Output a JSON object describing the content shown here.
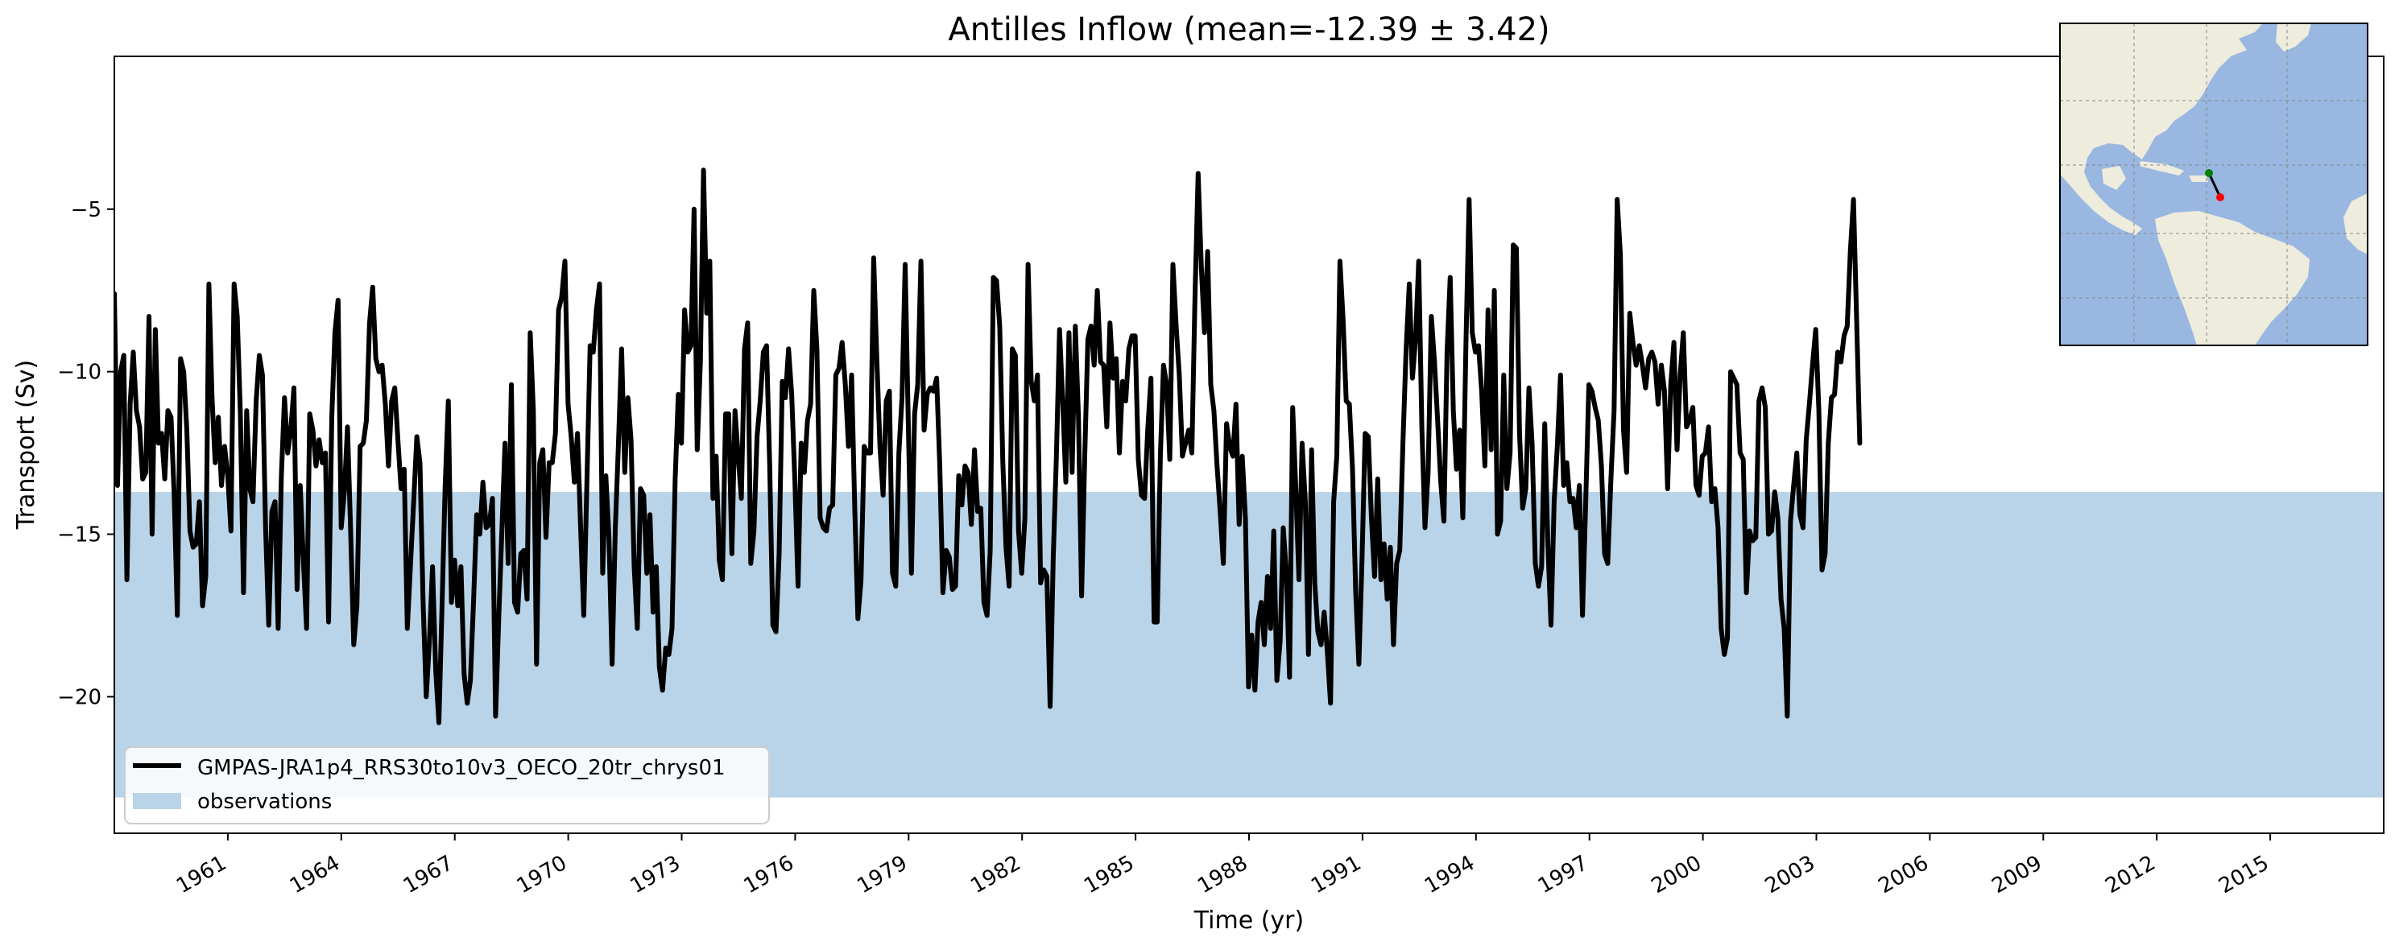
{
  "chart_data": {
    "type": "line",
    "title": "Antilles Inflow (mean=-12.39 ± 3.42)",
    "xlabel": "Time (yr)",
    "ylabel": "Transport (Sv)",
    "xlim": [
      1958,
      2018
    ],
    "ylim": [
      -24.2,
      -0.3
    ],
    "x_ticks": [
      1961,
      1964,
      1967,
      1970,
      1973,
      1976,
      1979,
      1982,
      1985,
      1988,
      1991,
      1994,
      1997,
      2000,
      2003,
      2006,
      2009,
      2012,
      2015
    ],
    "y_ticks": [
      -20,
      -15,
      -10,
      -5
    ],
    "grid": false,
    "legend_position": "lower-left",
    "observations_band": {
      "name": "observations",
      "range": [
        -23.1,
        -13.7
      ],
      "color": "#b9d4e8"
    },
    "series": [
      {
        "name": "GMPAS-JRA1p4_RRS30to10v3_OECO_20tr_chrys01",
        "color": "#000000",
        "x_start": 1958.0,
        "x_step": 0.0833,
        "values": [
          -7.6,
          -13.5,
          -10.0,
          -9.5,
          -16.4,
          -11.0,
          -9.4,
          -11.2,
          -11.7,
          -13.3,
          -13.1,
          -8.3,
          -15.0,
          -8.7,
          -12.2,
          -11.9,
          -13.3,
          -11.2,
          -11.4,
          -13.8,
          -17.5,
          -9.6,
          -10.0,
          -11.8,
          -14.9,
          -15.4,
          -15.3,
          -14.0,
          -17.2,
          -16.3,
          -7.3,
          -10.8,
          -12.8,
          -11.4,
          -13.5,
          -12.3,
          -13.2,
          -14.9,
          -7.3,
          -8.3,
          -11.3,
          -16.8,
          -11.2,
          -13.6,
          -14.0,
          -10.9,
          -9.5,
          -10.1,
          -14.8,
          -17.8,
          -14.3,
          -14.0,
          -17.9,
          -13.2,
          -10.8,
          -12.5,
          -11.8,
          -10.5,
          -16.7,
          -13.5,
          -15.8,
          -17.9,
          -11.3,
          -11.8,
          -12.9,
          -12.1,
          -12.8,
          -12.5,
          -17.7,
          -11.4,
          -8.8,
          -7.8,
          -14.8,
          -13.7,
          -11.7,
          -14.9,
          -18.4,
          -17.2,
          -12.3,
          -12.2,
          -11.5,
          -8.5,
          -7.4,
          -9.6,
          -10.0,
          -9.8,
          -11.0,
          -12.9,
          -10.9,
          -10.5,
          -12.1,
          -13.6,
          -13.0,
          -17.9,
          -15.9,
          -14.0,
          -12.0,
          -12.8,
          -17.1,
          -20.0,
          -18.3,
          -16.0,
          -19.2,
          -20.8,
          -17.2,
          -13.5,
          -10.9,
          -17.1,
          -15.8,
          -17.2,
          -16.0,
          -19.3,
          -20.2,
          -19.5,
          -17.1,
          -14.4,
          -15.0,
          -13.4,
          -14.8,
          -14.7,
          -13.9,
          -20.6,
          -17.6,
          -14.9,
          -12.2,
          -15.9,
          -10.4,
          -17.1,
          -17.4,
          -15.6,
          -15.5,
          -17.0,
          -8.8,
          -11.2,
          -19.0,
          -12.8,
          -12.4,
          -15.1,
          -12.8,
          -12.8,
          -11.9,
          -8.1,
          -7.7,
          -6.6,
          -11.0,
          -12.0,
          -13.4,
          -11.9,
          -14.8,
          -17.5,
          -13.4,
          -9.2,
          -9.4,
          -8.1,
          -7.3,
          -16.2,
          -13.2,
          -15.1,
          -19.0,
          -14.8,
          -12.2,
          -9.3,
          -13.1,
          -10.8,
          -12.1,
          -16.0,
          -17.9,
          -13.6,
          -13.8,
          -16.2,
          -14.4,
          -17.4,
          -16.0,
          -19.1,
          -19.8,
          -18.5,
          -18.7,
          -17.9,
          -13.3,
          -10.7,
          -12.2,
          -8.1,
          -9.4,
          -9.2,
          -5.0,
          -12.4,
          -9.7,
          -3.8,
          -8.2,
          -6.6,
          -13.9,
          -12.6,
          -15.8,
          -16.4,
          -11.3,
          -11.3,
          -15.6,
          -11.2,
          -12.6,
          -13.9,
          -9.3,
          -8.5,
          -15.9,
          -14.9,
          -12.0,
          -10.9,
          -9.4,
          -9.2,
          -12.9,
          -17.8,
          -18.0,
          -15.6,
          -10.3,
          -10.8,
          -9.3,
          -10.7,
          -13.4,
          -16.6,
          -12.2,
          -13.1,
          -11.5,
          -11.0,
          -7.5,
          -9.3,
          -14.5,
          -14.8,
          -14.9,
          -14.2,
          -14.1,
          -10.1,
          -9.9,
          -9.1,
          -10.4,
          -12.3,
          -10.1,
          -14.2,
          -17.6,
          -16.4,
          -12.3,
          -12.5,
          -12.5,
          -6.5,
          -9.6,
          -12.3,
          -13.8,
          -10.9,
          -10.6,
          -16.2,
          -16.6,
          -12.5,
          -10.8,
          -6.7,
          -11.6,
          -16.2,
          -11.3,
          -10.4,
          -6.6,
          -11.8,
          -10.7,
          -10.5,
          -10.6,
          -10.2,
          -12.9,
          -16.8,
          -15.5,
          -15.7,
          -16.7,
          -16.6,
          -13.2,
          -14.1,
          -12.9,
          -13.1,
          -14.7,
          -12.4,
          -14.3,
          -14.2,
          -17.1,
          -17.5,
          -15.5,
          -7.1,
          -7.2,
          -8.6,
          -12.8,
          -15.4,
          -16.6,
          -9.3,
          -9.5,
          -14.9,
          -16.2,
          -14.5,
          -6.7,
          -10.3,
          -10.9,
          -10.1,
          -16.5,
          -16.1,
          -16.3,
          -20.3,
          -15.7,
          -12.6,
          -8.7,
          -10.9,
          -13.4,
          -8.8,
          -13.1,
          -8.6,
          -11.4,
          -16.9,
          -12.6,
          -9.0,
          -8.6,
          -9.8,
          -7.5,
          -9.7,
          -9.8,
          -11.7,
          -8.5,
          -10.2,
          -9.6,
          -12.5,
          -10.3,
          -10.9,
          -9.3,
          -8.9,
          -8.9,
          -12.7,
          -13.8,
          -13.9,
          -11.8,
          -10.2,
          -17.7,
          -17.7,
          -12.6,
          -9.8,
          -10.4,
          -12.7,
          -6.7,
          -8.6,
          -10.1,
          -12.6,
          -12.2,
          -11.8,
          -12.5,
          -7.7,
          -3.9,
          -6.8,
          -8.8,
          -6.3,
          -10.4,
          -11.2,
          -12.9,
          -14.3,
          -15.9,
          -11.6,
          -12.3,
          -12.6,
          -11.0,
          -14.7,
          -12.6,
          -14.5,
          -19.7,
          -18.1,
          -19.8,
          -17.7,
          -17.1,
          -18.4,
          -16.3,
          -17.9,
          -14.9,
          -19.5,
          -18.3,
          -14.8,
          -16.2,
          -19.4,
          -11.1,
          -13.6,
          -16.4,
          -12.2,
          -14.0,
          -18.7,
          -12.4,
          -16.5,
          -18.0,
          -18.4,
          -17.4,
          -18.6,
          -20.2,
          -14.0,
          -12.6,
          -6.6,
          -8.4,
          -10.9,
          -11.0,
          -13.0,
          -16.8,
          -19.0,
          -15.8,
          -11.9,
          -12.0,
          -14.5,
          -16.3,
          -13.3,
          -16.4,
          -15.3,
          -17.0,
          -15.4,
          -18.4,
          -15.9,
          -15.5,
          -12.2,
          -9.3,
          -7.3,
          -10.2,
          -9.0,
          -6.6,
          -11.7,
          -14.8,
          -13.1,
          -8.3,
          -9.7,
          -11.5,
          -13.4,
          -14.6,
          -9.4,
          -7.1,
          -11.2,
          -13.0,
          -11.8,
          -14.5,
          -9.1,
          -4.7,
          -8.8,
          -9.4,
          -9.2,
          -10.6,
          -12.9,
          -8.1,
          -12.4,
          -7.5,
          -15.0,
          -14.6,
          -10.1,
          -13.6,
          -12.5,
          -6.1,
          -6.2,
          -11.9,
          -14.2,
          -13.6,
          -10.5,
          -12.2,
          -15.9,
          -16.6,
          -16.0,
          -11.6,
          -15.3,
          -17.8,
          -14.0,
          -12.3,
          -10.1,
          -13.5,
          -12.8,
          -14.0,
          -13.9,
          -14.8,
          -13.5,
          -17.5,
          -14.0,
          -10.4,
          -10.6,
          -11.1,
          -11.5,
          -12.9,
          -15.6,
          -15.9,
          -13.3,
          -11.2,
          -4.7,
          -6.4,
          -11.8,
          -13.1,
          -8.2,
          -9.1,
          -9.8,
          -9.2,
          -9.8,
          -10.5,
          -9.6,
          -9.4,
          -9.7,
          -11.0,
          -9.8,
          -10.6,
          -13.6,
          -10.4,
          -9.1,
          -12.4,
          -10.1,
          -8.8,
          -11.7,
          -11.5,
          -11.1,
          -13.5,
          -13.8,
          -12.6,
          -12.5,
          -11.7,
          -14.0,
          -13.6,
          -14.8,
          -17.9,
          -18.7,
          -18.2,
          -10.0,
          -10.2,
          -10.4,
          -12.5,
          -12.7,
          -16.8,
          -14.9,
          -15.2,
          -15.1,
          -10.9,
          -10.5,
          -11.1,
          -15.0,
          -14.9,
          -13.7,
          -14.5,
          -17.0,
          -17.9,
          -20.6,
          -14.6,
          -13.5,
          -12.5,
          -14.4,
          -14.8,
          -12.1,
          -11.0,
          -9.8,
          -8.7,
          -11.2,
          -16.1,
          -15.6,
          -12.2,
          -10.8,
          -10.7,
          -9.4,
          -9.7,
          -8.9,
          -8.6,
          -6.3,
          -4.7,
          -8.4,
          -12.2
        ]
      }
    ],
    "inset_map": {
      "land_color": "#eeecdd",
      "ocean_color": "#99b7e1",
      "section_start_color": "#008000",
      "section_end_color": "#ff0000"
    }
  }
}
